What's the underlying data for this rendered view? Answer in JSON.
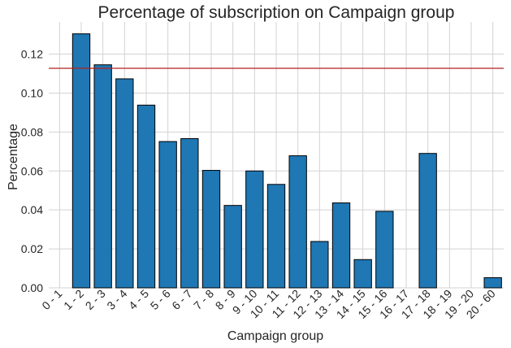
{
  "chart_data": {
    "type": "bar",
    "title": "Percentage of subscription on Campaign group",
    "xlabel": "Campaign group",
    "ylabel": "Percentage",
    "categories": [
      "0 - 1",
      "1 - 2",
      "2 - 3",
      "3 - 4",
      "4 - 5",
      "5 - 6",
      "6 - 7",
      "7 - 8",
      "8 - 9",
      "9 - 10",
      "10 - 11",
      "11 - 12",
      "12 - 13",
      "13 - 14",
      "14 - 15",
      "15 - 16",
      "16 - 17",
      "17 - 18",
      "18 - 19",
      "19 - 20",
      "20 - 60"
    ],
    "values": [
      0,
      0.1304,
      0.1145,
      0.1073,
      0.0938,
      0.0751,
      0.0766,
      0.0603,
      0.0423,
      0.06,
      0.0531,
      0.0678,
      0.0238,
      0.0436,
      0.0145,
      0.0393,
      0,
      0.069,
      0,
      0,
      0.0052
    ],
    "yticks": [
      "0.00",
      "0.02",
      "0.04",
      "0.06",
      "0.08",
      "0.10",
      "0.12"
    ],
    "ylim": [
      0,
      0.1365
    ],
    "reference_line": 0.1127,
    "grid": true,
    "colors": {
      "bar_fill": "#1f77b4",
      "bar_edge": "#000000",
      "reference_line": "#b22222",
      "grid": "#d3d3d3"
    }
  }
}
